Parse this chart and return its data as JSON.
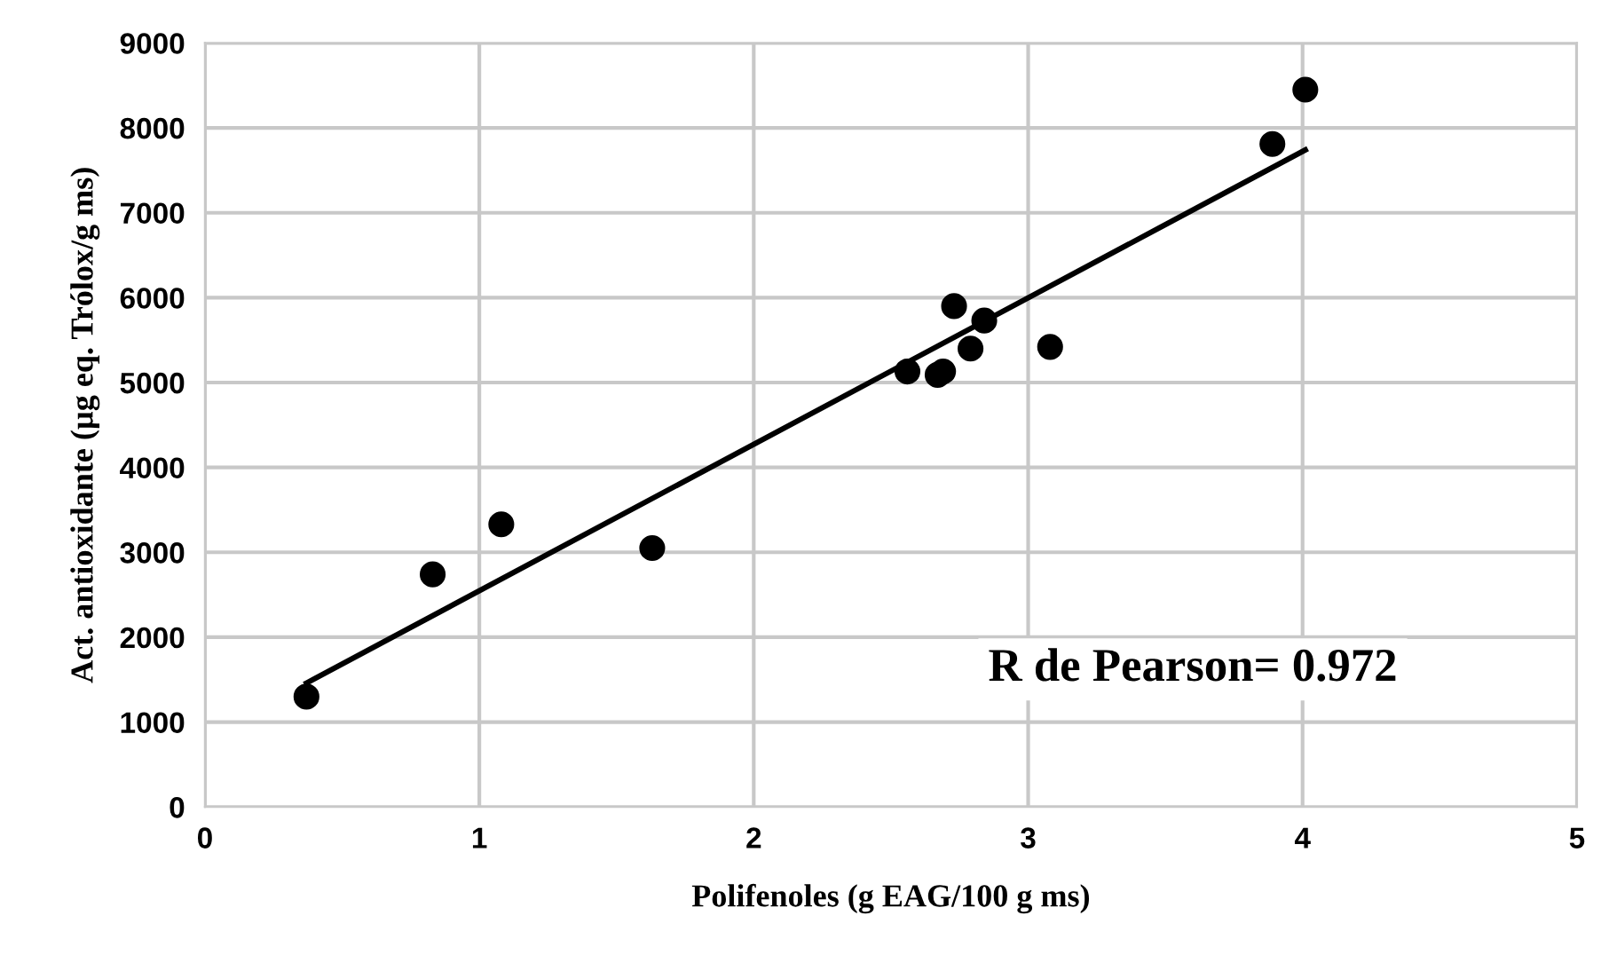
{
  "chart_data": {
    "type": "scatter",
    "xlabel": "Polifenoles (g EAG/100 g ms)",
    "ylabel": "Act. antioxidante (µg eq. Trólox/g ms)",
    "xlim": [
      0,
      5
    ],
    "ylim": [
      0,
      9000
    ],
    "xticks": [
      0,
      1,
      2,
      3,
      4,
      5
    ],
    "yticks": [
      0,
      1000,
      2000,
      3000,
      4000,
      5000,
      6000,
      7000,
      8000,
      9000
    ],
    "grid": true,
    "series": [
      {
        "color": "#000000",
        "marker": "circle",
        "x": [
          0.37,
          0.83,
          1.08,
          1.63,
          2.56,
          2.67,
          2.69,
          2.73,
          2.79,
          2.84,
          3.08,
          3.89,
          4.01
        ],
        "values": [
          1300,
          2740,
          3330,
          3050,
          5130,
          5090,
          5130,
          5900,
          5400,
          5730,
          5420,
          7810,
          8450
        ]
      },
      {
        "type": "line",
        "marker": "none",
        "color": "#000000",
        "x": [
          0.37,
          4.01
        ],
        "values": [
          1460,
          7740
        ]
      }
    ],
    "annotations": [
      "R de Pearson= 0.972"
    ]
  }
}
